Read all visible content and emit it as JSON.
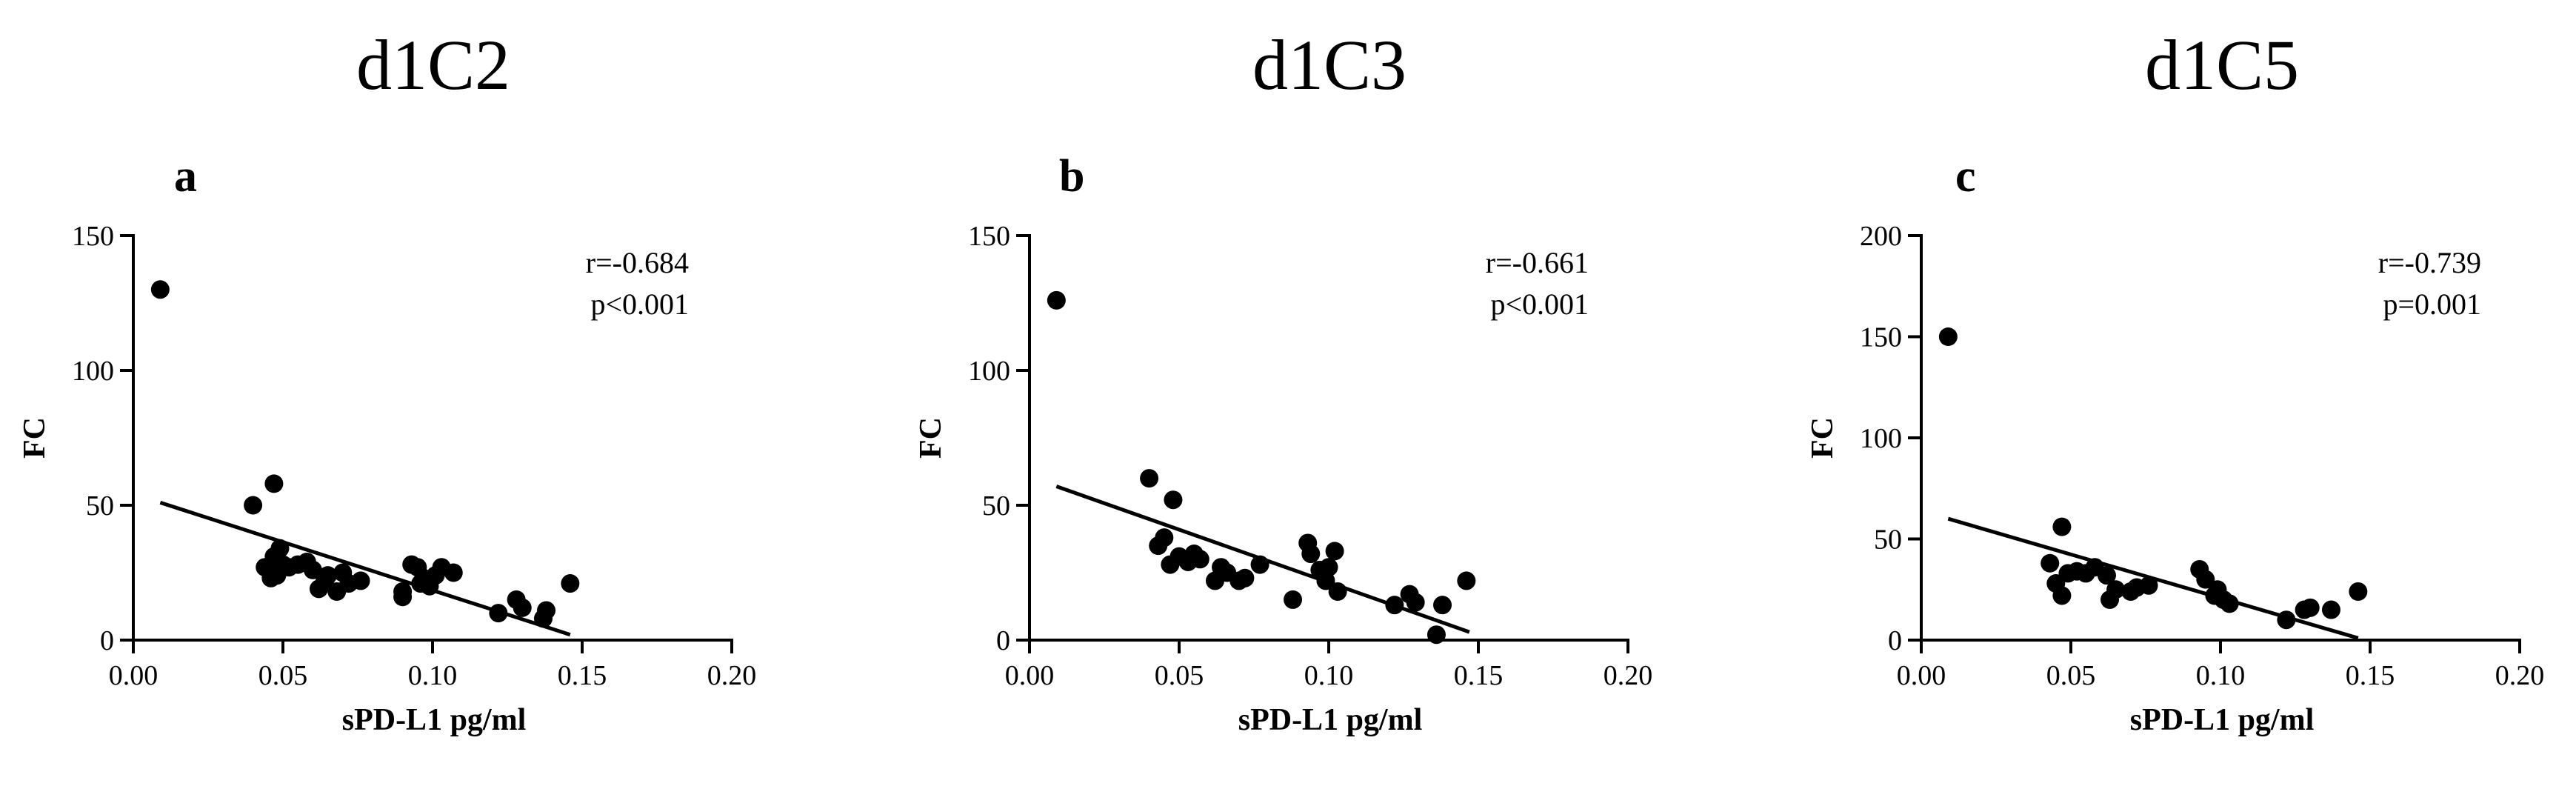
{
  "chart_data": [
    {
      "type": "scatter",
      "title": "d1C2",
      "panel_label": "a",
      "xlabel": "sPD-L1 pg/ml",
      "ylabel": "FC",
      "xlim": [
        0,
        0.2
      ],
      "ylim": [
        0,
        150
      ],
      "xticks": [
        "0.00",
        "0.05",
        "0.10",
        "0.15",
        "0.20"
      ],
      "yticks": [
        "0",
        "50",
        "100",
        "150"
      ],
      "stats": [
        "r=-0.684",
        "p<0.001"
      ],
      "points": [
        [
          0.009,
          130
        ],
        [
          0.04,
          50
        ],
        [
          0.047,
          58
        ],
        [
          0.044,
          27
        ],
        [
          0.046,
          23
        ],
        [
          0.047,
          31
        ],
        [
          0.048,
          24
        ],
        [
          0.049,
          34
        ],
        [
          0.05,
          28
        ],
        [
          0.052,
          27
        ],
        [
          0.055,
          28
        ],
        [
          0.058,
          29
        ],
        [
          0.06,
          26
        ],
        [
          0.062,
          19
        ],
        [
          0.064,
          22
        ],
        [
          0.065,
          24
        ],
        [
          0.068,
          18
        ],
        [
          0.07,
          25
        ],
        [
          0.072,
          21
        ],
        [
          0.076,
          22
        ],
        [
          0.09,
          16
        ],
        [
          0.09,
          18
        ],
        [
          0.093,
          28
        ],
        [
          0.095,
          27
        ],
        [
          0.096,
          21
        ],
        [
          0.097,
          23
        ],
        [
          0.099,
          20
        ],
        [
          0.101,
          24
        ],
        [
          0.103,
          27
        ],
        [
          0.107,
          25
        ],
        [
          0.122,
          10
        ],
        [
          0.128,
          15
        ],
        [
          0.13,
          12
        ],
        [
          0.137,
          8
        ],
        [
          0.138,
          11
        ],
        [
          0.146,
          21
        ]
      ],
      "fit_line": [
        [
          0.009,
          51
        ],
        [
          0.146,
          2
        ]
      ]
    },
    {
      "type": "scatter",
      "title": "d1C3",
      "panel_label": "b",
      "xlabel": "sPD-L1 pg/ml",
      "ylabel": "FC",
      "xlim": [
        0,
        0.2
      ],
      "ylim": [
        0,
        150
      ],
      "xticks": [
        "0.00",
        "0.05",
        "0.10",
        "0.15",
        "0.20"
      ],
      "yticks": [
        "0",
        "50",
        "100",
        "150"
      ],
      "stats": [
        "r=-0.661",
        "p<0.001"
      ],
      "points": [
        [
          0.009,
          126
        ],
        [
          0.04,
          60
        ],
        [
          0.048,
          52
        ],
        [
          0.043,
          35
        ],
        [
          0.045,
          38
        ],
        [
          0.047,
          28
        ],
        [
          0.05,
          31
        ],
        [
          0.053,
          29
        ],
        [
          0.055,
          32
        ],
        [
          0.057,
          30
        ],
        [
          0.062,
          22
        ],
        [
          0.064,
          27
        ],
        [
          0.066,
          25
        ],
        [
          0.07,
          22
        ],
        [
          0.072,
          23
        ],
        [
          0.077,
          28
        ],
        [
          0.088,
          15
        ],
        [
          0.093,
          36
        ],
        [
          0.094,
          32
        ],
        [
          0.097,
          26
        ],
        [
          0.099,
          22
        ],
        [
          0.1,
          27
        ],
        [
          0.102,
          33
        ],
        [
          0.103,
          18
        ],
        [
          0.122,
          13
        ],
        [
          0.127,
          17
        ],
        [
          0.129,
          14
        ],
        [
          0.136,
          2
        ],
        [
          0.138,
          13
        ],
        [
          0.146,
          22
        ]
      ],
      "fit_line": [
        [
          0.009,
          57
        ],
        [
          0.147,
          3
        ]
      ]
    },
    {
      "type": "scatter",
      "title": "d1C5",
      "panel_label": "c",
      "xlabel": "sPD-L1 pg/ml",
      "ylabel": "FC",
      "xlim": [
        0,
        0.2
      ],
      "ylim": [
        0,
        200
      ],
      "xticks": [
        "0.00",
        "0.05",
        "0.10",
        "0.15",
        "0.20"
      ],
      "yticks": [
        "0",
        "50",
        "100",
        "150",
        "200"
      ],
      "stats": [
        "r=-0.739",
        "p=0.001"
      ],
      "points": [
        [
          0.009,
          150
        ],
        [
          0.047,
          56
        ],
        [
          0.043,
          38
        ],
        [
          0.045,
          28
        ],
        [
          0.047,
          22
        ],
        [
          0.049,
          33
        ],
        [
          0.052,
          34
        ],
        [
          0.055,
          33
        ],
        [
          0.058,
          36
        ],
        [
          0.062,
          32
        ],
        [
          0.063,
          20
        ],
        [
          0.065,
          25
        ],
        [
          0.07,
          24
        ],
        [
          0.072,
          26
        ],
        [
          0.076,
          27
        ],
        [
          0.093,
          35
        ],
        [
          0.095,
          30
        ],
        [
          0.098,
          22
        ],
        [
          0.099,
          25
        ],
        [
          0.101,
          20
        ],
        [
          0.103,
          18
        ],
        [
          0.122,
          10
        ],
        [
          0.128,
          15
        ],
        [
          0.13,
          16
        ],
        [
          0.137,
          15
        ],
        [
          0.146,
          24
        ]
      ],
      "fit_line": [
        [
          0.009,
          60
        ],
        [
          0.146,
          1
        ]
      ]
    }
  ]
}
